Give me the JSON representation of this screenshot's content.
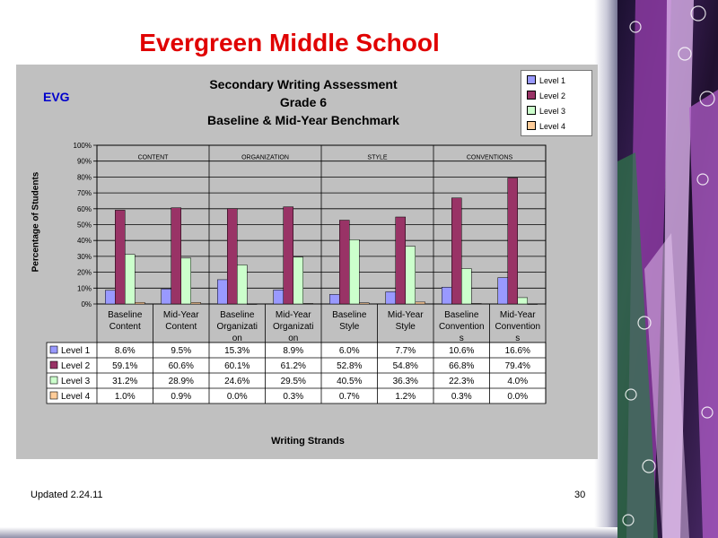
{
  "slide": {
    "title": "Evergreen Middle School",
    "footer_left": "Updated  2.24.11",
    "page_number": "30"
  },
  "chart_data": {
    "type": "bar",
    "title": [
      "Secondary Writing Assessment",
      "Grade 6",
      "Baseline & Mid-Year Benchmark"
    ],
    "badge": "EVG",
    "ylabel": "Percentage of Students",
    "xlabel": "Writing Strands",
    "ylim": [
      0,
      100
    ],
    "yticks": [
      "0%",
      "10%",
      "20%",
      "30%",
      "40%",
      "50%",
      "60%",
      "70%",
      "80%",
      "90%",
      "100%"
    ],
    "grid": true,
    "legend_position": "top-right",
    "groups": [
      "CONTENT",
      "ORGANIZATION",
      "STYLE",
      "CONVENTIONS"
    ],
    "categories": [
      [
        "Baseline",
        "Content"
      ],
      [
        "Mid-Year",
        "Content"
      ],
      [
        "Baseline",
        "Organizati",
        "on"
      ],
      [
        "Mid-Year",
        "Organizati",
        "on"
      ],
      [
        "Baseline",
        "Style"
      ],
      [
        "Mid-Year",
        "Style"
      ],
      [
        "Baseline",
        "Convention",
        "s"
      ],
      [
        "Mid-Year",
        "Convention",
        "s"
      ]
    ],
    "series": [
      {
        "name": "Level 1",
        "color": "#9999ff",
        "values": [
          8.6,
          9.5,
          15.3,
          8.9,
          6.0,
          7.7,
          10.6,
          16.6
        ],
        "labels": [
          "8.6%",
          "9.5%",
          "15.3%",
          "8.9%",
          "6.0%",
          "7.7%",
          "10.6%",
          "16.6%"
        ]
      },
      {
        "name": "Level 2",
        "color": "#993366",
        "values": [
          59.1,
          60.6,
          60.1,
          61.2,
          52.8,
          54.8,
          66.8,
          79.4
        ],
        "labels": [
          "59.1%",
          "60.6%",
          "60.1%",
          "61.2%",
          "52.8%",
          "54.8%",
          "66.8%",
          "79.4%"
        ]
      },
      {
        "name": "Level 3",
        "color": "#ccffcc",
        "values": [
          31.2,
          28.9,
          24.6,
          29.5,
          40.5,
          36.3,
          22.3,
          4.0
        ],
        "labels": [
          "31.2%",
          "28.9%",
          "24.6%",
          "29.5%",
          "40.5%",
          "36.3%",
          "22.3%",
          "4.0%"
        ]
      },
      {
        "name": "Level 4",
        "color": "#ffcc99",
        "values": [
          1.0,
          0.9,
          0.0,
          0.3,
          0.7,
          1.2,
          0.3,
          0.0
        ],
        "labels": [
          "1.0%",
          "0.9%",
          "0.0%",
          "0.3%",
          "0.7%",
          "1.2%",
          "0.3%",
          "0.0%"
        ]
      }
    ]
  }
}
